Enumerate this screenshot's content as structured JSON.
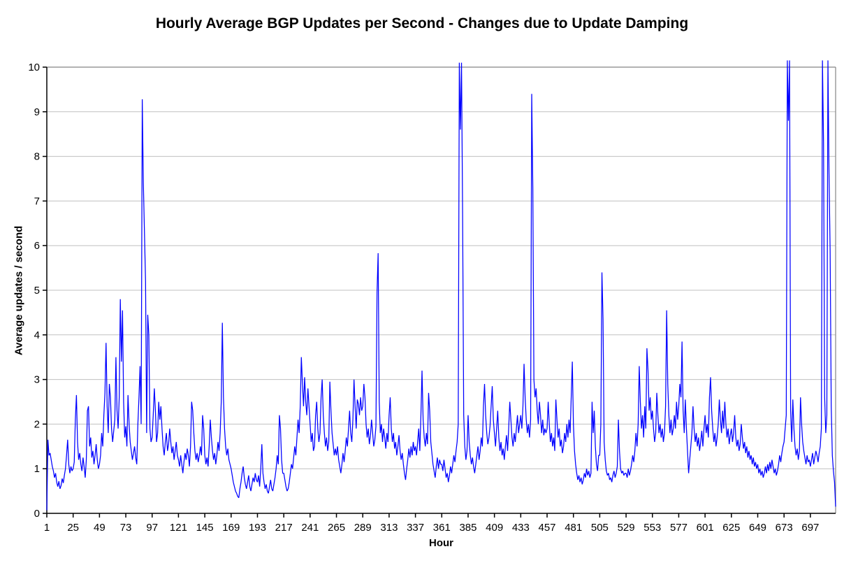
{
  "page": {
    "background": "#FFFFFF"
  },
  "chart_data": {
    "type": "line",
    "title": "Hourly Average BGP Updates per Second - Changes due to Update Damping",
    "xlabel": "Hour",
    "ylabel": "Average updates / second",
    "legend": "none",
    "grid": "horizontal-on",
    "line_color": "#0000FF",
    "gridline_color": "#C0C0C0",
    "plot_border_color": "#848484",
    "axis_color": "#000000",
    "text_color": "#000000",
    "ylim": [
      0,
      10
    ],
    "y_tick_labels": [
      "0",
      "1",
      "2",
      "3",
      "4",
      "5",
      "6",
      "7",
      "8",
      "9",
      "10"
    ],
    "x_tick_hours": [
      1,
      25,
      49,
      73,
      97,
      121,
      145,
      169,
      193,
      217,
      241,
      265,
      289,
      313,
      337,
      361,
      385,
      409,
      433,
      457,
      481,
      505,
      529,
      553,
      577,
      601,
      625,
      649,
      673,
      697
    ],
    "x_start_hour": 1,
    "x_end_hour": 720,
    "values": [
      0.07,
      1.65,
      1.3,
      1.35,
      1.2,
      1.05,
      0.95,
      0.8,
      0.9,
      0.7,
      0.6,
      0.72,
      0.55,
      0.62,
      0.78,
      0.68,
      0.85,
      1.0,
      1.3,
      1.65,
      1.1,
      0.9,
      1.05,
      0.95,
      1.0,
      1.15,
      2.1,
      2.65,
      1.6,
      1.2,
      1.35,
      1.1,
      0.95,
      1.25,
      1.05,
      0.8,
      1.2,
      2.3,
      2.4,
      1.5,
      1.7,
      1.25,
      1.4,
      1.1,
      1.3,
      1.55,
      1.2,
      1.0,
      1.1,
      1.3,
      1.8,
      1.5,
      2.2,
      2.7,
      3.82,
      2.4,
      1.8,
      2.9,
      2.6,
      1.9,
      1.6,
      1.85,
      2.1,
      3.5,
      2.3,
      1.9,
      2.6,
      4.8,
      3.4,
      4.55,
      2.5,
      1.7,
      1.95,
      1.5,
      2.65,
      2.0,
      1.6,
      1.4,
      1.2,
      1.35,
      1.5,
      1.25,
      1.1,
      2.0,
      2.6,
      3.3,
      2.0,
      9.28,
      7.4,
      6.3,
      5.2,
      1.8,
      4.45,
      4.0,
      1.9,
      1.6,
      1.7,
      2.2,
      2.8,
      2.3,
      1.6,
      1.8,
      2.5,
      2.1,
      2.4,
      1.9,
      1.5,
      1.3,
      1.6,
      1.8,
      1.4,
      1.55,
      1.9,
      1.6,
      1.35,
      1.5,
      1.2,
      1.4,
      1.6,
      1.3,
      1.2,
      1.05,
      1.3,
      1.1,
      0.9,
      1.15,
      1.35,
      1.2,
      1.45,
      1.3,
      1.05,
      1.5,
      2.5,
      2.3,
      1.8,
      1.4,
      1.2,
      1.35,
      1.15,
      1.3,
      1.5,
      1.3,
      2.2,
      1.9,
      1.3,
      1.1,
      1.25,
      1.05,
      1.5,
      2.1,
      1.7,
      1.4,
      1.2,
      1.35,
      1.1,
      1.3,
      1.6,
      1.4,
      1.8,
      2.5,
      4.27,
      2.6,
      1.9,
      1.5,
      1.3,
      1.45,
      1.2,
      1.1,
      1.0,
      0.85,
      0.7,
      0.6,
      0.5,
      0.45,
      0.38,
      0.35,
      0.55,
      0.7,
      0.9,
      1.05,
      0.8,
      0.65,
      0.55,
      0.7,
      0.85,
      0.6,
      0.5,
      0.65,
      0.8,
      0.7,
      0.9,
      0.75,
      0.7,
      0.85,
      0.6,
      1.0,
      1.55,
      0.9,
      0.7,
      0.55,
      0.65,
      0.5,
      0.45,
      0.6,
      0.75,
      0.55,
      0.5,
      0.65,
      0.8,
      1.0,
      1.3,
      1.1,
      2.2,
      1.9,
      1.2,
      0.9,
      0.9,
      0.75,
      0.6,
      0.5,
      0.55,
      0.7,
      0.9,
      1.1,
      1.0,
      1.25,
      1.5,
      1.3,
      1.7,
      2.1,
      1.8,
      2.4,
      3.5,
      2.9,
      2.4,
      3.05,
      2.5,
      2.2,
      2.8,
      2.4,
      2.0,
      1.6,
      1.8,
      1.4,
      1.5,
      2.2,
      2.5,
      1.9,
      1.6,
      1.8,
      2.6,
      3.0,
      2.2,
      1.8,
      1.5,
      1.7,
      1.4,
      1.6,
      2.95,
      2.3,
      1.8,
      1.55,
      1.3,
      1.45,
      1.3,
      1.5,
      1.2,
      1.05,
      0.9,
      1.1,
      1.35,
      1.15,
      1.4,
      1.7,
      1.5,
      1.9,
      2.3,
      1.8,
      1.6,
      2.1,
      3.0,
      2.4,
      1.9,
      2.55,
      2.45,
      2.2,
      2.6,
      2.3,
      2.4,
      2.9,
      2.6,
      2.0,
      1.7,
      1.9,
      1.55,
      1.75,
      2.1,
      1.8,
      1.5,
      1.65,
      1.95,
      4.95,
      5.83,
      2.5,
      1.8,
      2.0,
      1.6,
      1.9,
      1.7,
      1.45,
      1.8,
      1.6,
      2.2,
      2.6,
      1.9,
      1.6,
      1.8,
      1.45,
      1.6,
      1.3,
      1.5,
      1.75,
      1.4,
      1.2,
      1.35,
      1.1,
      0.9,
      0.75,
      1.0,
      1.2,
      1.45,
      1.25,
      1.5,
      1.3,
      1.6,
      1.4,
      1.5,
      1.3,
      1.6,
      1.9,
      1.4,
      2.2,
      3.2,
      2.1,
      1.7,
      1.5,
      1.8,
      1.55,
      2.7,
      2.3,
      1.6,
      1.35,
      1.1,
      0.95,
      0.8,
      1.05,
      1.25,
      1.0,
      1.2,
      1.1,
      1.1,
      0.95,
      1.2,
      1.0,
      0.8,
      0.9,
      0.7,
      0.85,
      1.05,
      0.9,
      1.1,
      1.3,
      1.15,
      1.4,
      1.6,
      2.0,
      10.1,
      8.6,
      10.1,
      6.7,
      2.2,
      1.5,
      1.2,
      1.4,
      2.2,
      1.6,
      1.3,
      1.1,
      1.25,
      1.05,
      0.9,
      1.1,
      1.3,
      1.5,
      1.2,
      1.4,
      1.7,
      1.5,
      2.4,
      2.9,
      2.2,
      1.8,
      1.55,
      1.7,
      1.95,
      2.4,
      2.85,
      2.1,
      1.8,
      1.5,
      1.9,
      2.3,
      1.7,
      1.4,
      1.6,
      1.3,
      1.45,
      1.2,
      1.5,
      1.75,
      1.4,
      1.9,
      2.5,
      2.1,
      1.7,
      1.5,
      1.8,
      1.6,
      1.9,
      2.2,
      1.8,
      2.0,
      2.2,
      1.9,
      2.4,
      3.35,
      2.6,
      2.1,
      1.8,
      2.0,
      1.7,
      2.1,
      9.4,
      7.3,
      3.0,
      2.6,
      2.8,
      2.3,
      2.0,
      2.5,
      2.2,
      1.8,
      2.1,
      1.75,
      1.9,
      1.8,
      1.9,
      2.5,
      2.0,
      1.6,
      1.8,
      1.5,
      1.7,
      1.4,
      2.55,
      2.1,
      1.7,
      1.9,
      1.5,
      1.65,
      1.35,
      1.5,
      1.8,
      1.6,
      2.0,
      1.7,
      2.1,
      1.8,
      2.6,
      3.4,
      2.0,
      1.4,
      1.1,
      0.9,
      0.75,
      0.85,
      0.7,
      0.8,
      0.65,
      0.75,
      0.9,
      0.8,
      1.0,
      0.85,
      0.95,
      0.8,
      0.9,
      2.5,
      1.8,
      2.3,
      1.5,
      1.1,
      0.95,
      1.3,
      1.3,
      2.0,
      5.4,
      4.35,
      1.6,
      1.2,
      0.95,
      0.85,
      0.9,
      0.75,
      0.8,
      0.7,
      0.85,
      0.95,
      0.8,
      0.9,
      1.05,
      2.1,
      1.4,
      1.0,
      0.9,
      0.95,
      0.85,
      0.9,
      0.9,
      0.8,
      1.0,
      0.85,
      0.95,
      1.1,
      1.3,
      1.15,
      1.4,
      1.8,
      1.5,
      2.0,
      3.3,
      2.5,
      1.9,
      2.2,
      1.7,
      2.4,
      1.9,
      3.7,
      3.2,
      2.3,
      2.6,
      2.1,
      2.3,
      1.9,
      1.6,
      1.8,
      2.7,
      2.2,
      1.8,
      2.0,
      1.7,
      1.9,
      1.6,
      1.8,
      2.4,
      4.55,
      2.9,
      2.2,
      1.8,
      2.1,
      1.75,
      1.9,
      2.2,
      1.9,
      2.5,
      2.1,
      2.4,
      2.9,
      2.6,
      3.85,
      2.3,
      1.8,
      2.55,
      1.9,
      1.4,
      0.9,
      1.2,
      1.5,
      1.8,
      2.4,
      1.9,
      1.6,
      1.8,
      1.5,
      1.7,
      1.4,
      1.6,
      1.85,
      1.5,
      1.9,
      2.2,
      1.8,
      2.0,
      1.7,
      2.6,
      3.05,
      2.3,
      1.9,
      1.6,
      1.8,
      1.5,
      1.7,
      2.0,
      2.55,
      2.1,
      1.8,
      2.3,
      1.9,
      2.5,
      2.0,
      1.7,
      1.9,
      1.55,
      1.75,
      1.9,
      1.6,
      1.8,
      2.2,
      1.7,
      1.5,
      1.65,
      1.4,
      1.55,
      2.0,
      1.7,
      1.45,
      1.6,
      1.35,
      1.5,
      1.25,
      1.4,
      1.2,
      1.3,
      1.1,
      1.25,
      1.05,
      1.15,
      1.0,
      1.1,
      0.9,
      1.0,
      0.85,
      0.95,
      0.8,
      0.9,
      1.05,
      0.9,
      1.1,
      0.95,
      1.15,
      1.0,
      1.2,
      1.05,
      0.9,
      1.0,
      0.85,
      0.95,
      1.1,
      1.3,
      1.15,
      1.35,
      1.5,
      1.6,
      1.9,
      2.2,
      10.15,
      8.8,
      10.15,
      2.3,
      1.6,
      2.55,
      1.9,
      1.5,
      1.3,
      1.45,
      1.2,
      1.4,
      2.6,
      2.0,
      1.6,
      1.4,
      1.25,
      1.1,
      1.3,
      1.15,
      1.2,
      1.05,
      1.2,
      1.35,
      1.1,
      1.25,
      1.4,
      1.3,
      1.15,
      1.35,
      1.5,
      1.9,
      10.15,
      8.3,
      2.6,
      1.8,
      2.2,
      10.15,
      7.6,
      5.9,
      2.4,
      1.3,
      0.95,
      0.7,
      0.15
    ]
  }
}
